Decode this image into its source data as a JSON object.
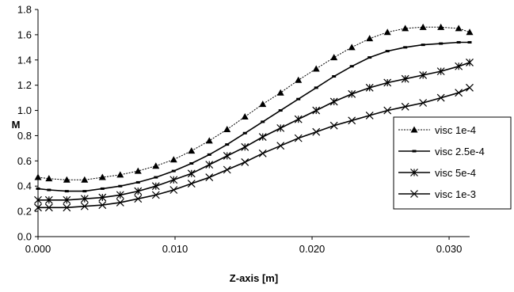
{
  "chart_data": {
    "type": "line",
    "title": "",
    "xlabel": "Z-axis [m]",
    "ylabel": "M",
    "xlim": [
      0.0,
      0.0315
    ],
    "ylim": [
      0.0,
      1.8
    ],
    "x_ticks": [
      "0.000",
      "0.010",
      "0.020",
      "0.030"
    ],
    "y_ticks": [
      "0.0",
      "0.2",
      "0.4",
      "0.6",
      "0.8",
      "1.0",
      "1.2",
      "1.4",
      "1.6",
      "1.8"
    ],
    "grid": false,
    "legend_position": "right",
    "x": [
      0.0,
      0.0008,
      0.0021,
      0.0034,
      0.0047,
      0.006,
      0.0073,
      0.0086,
      0.0099,
      0.0112,
      0.0125,
      0.0138,
      0.0151,
      0.0164,
      0.0177,
      0.019,
      0.0203,
      0.0216,
      0.0229,
      0.0242,
      0.0255,
      0.0268,
      0.0281,
      0.0294,
      0.0307,
      0.0315
    ],
    "series": [
      {
        "name": "visc 1e-4",
        "marker": "triangle",
        "values": [
          0.47,
          0.46,
          0.45,
          0.45,
          0.47,
          0.49,
          0.52,
          0.56,
          0.61,
          0.68,
          0.76,
          0.85,
          0.95,
          1.05,
          1.14,
          1.24,
          1.33,
          1.42,
          1.5,
          1.57,
          1.62,
          1.65,
          1.66,
          1.66,
          1.65,
          1.62
        ]
      },
      {
        "name": "visc 2.5e-4",
        "marker": "dash",
        "values": [
          0.38,
          0.37,
          0.36,
          0.36,
          0.38,
          0.4,
          0.43,
          0.47,
          0.52,
          0.58,
          0.65,
          0.73,
          0.82,
          0.91,
          1.0,
          1.09,
          1.18,
          1.27,
          1.35,
          1.42,
          1.47,
          1.5,
          1.52,
          1.53,
          1.54,
          1.54
        ]
      },
      {
        "name": "visc 5e-4",
        "marker": "asterisk",
        "values": [
          0.29,
          0.29,
          0.29,
          0.3,
          0.31,
          0.33,
          0.36,
          0.4,
          0.45,
          0.5,
          0.57,
          0.64,
          0.71,
          0.79,
          0.86,
          0.93,
          1.0,
          1.07,
          1.13,
          1.18,
          1.22,
          1.25,
          1.28,
          1.31,
          1.35,
          1.38
        ]
      },
      {
        "name": "visc 1e-3",
        "marker": "x",
        "values": [
          0.23,
          0.23,
          0.23,
          0.24,
          0.25,
          0.27,
          0.3,
          0.33,
          0.37,
          0.42,
          0.47,
          0.53,
          0.59,
          0.66,
          0.72,
          0.78,
          0.83,
          0.88,
          0.92,
          0.96,
          1.0,
          1.03,
          1.06,
          1.1,
          1.14,
          1.18
        ]
      }
    ]
  }
}
